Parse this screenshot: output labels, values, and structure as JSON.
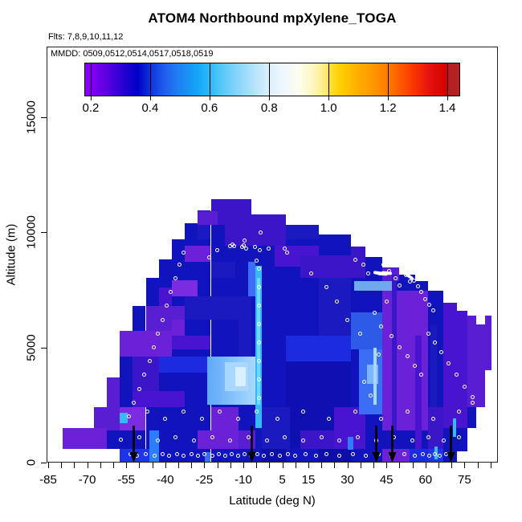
{
  "flights_note": "Flts: 7,8,9,10,11,12",
  "dates_note": "MMDD: 0509,0512,0514,0517,0518,0519",
  "chart_data": {
    "type": "heatmap",
    "title": "ATOM4 Northbound mpXylene_TOGA",
    "xlabel": "Latitude (deg N)",
    "ylabel": "Altitude (m)",
    "xlim": [
      -85,
      88
    ],
    "ylim": [
      0,
      18000
    ],
    "x_tick_labels": [
      -85,
      -70,
      -55,
      -40,
      -25,
      -10,
      5,
      15,
      30,
      45,
      60,
      75
    ],
    "x_minor_tick_range": [
      -85,
      85
    ],
    "x_minor_tick_step": 5,
    "y_ticks": [
      0,
      5000,
      10000,
      15000
    ],
    "grid": false,
    "colorbar": {
      "tick_labels": [
        "0.2",
        "0.4",
        "0.6",
        "0.8",
        "1.0",
        "1.2",
        "1.4"
      ],
      "tick_pcts": [
        1.7,
        17.5,
        33.3,
        49.2,
        65.0,
        80.8,
        96.6
      ],
      "stops": [
        [
          0,
          "#8B00FF"
        ],
        [
          2,
          "#7C00F2"
        ],
        [
          6,
          "#5A00E0"
        ],
        [
          10,
          "#2800D2"
        ],
        [
          14,
          "#0000C8"
        ],
        [
          17.5,
          "#0F35DC"
        ],
        [
          21.5,
          "#2360EE"
        ],
        [
          25.5,
          "#1E84F5"
        ],
        [
          29.5,
          "#12A2F8"
        ],
        [
          33.3,
          "#2CB9F8"
        ],
        [
          37.5,
          "#63CCF9"
        ],
        [
          41.5,
          "#8FD7FA"
        ],
        [
          45.5,
          "#B8E4FB"
        ],
        [
          49.2,
          "#DCEFFC"
        ],
        [
          53,
          "#EFF7FD"
        ],
        [
          57,
          "#FDFDEF"
        ],
        [
          61,
          "#FEF5BE"
        ],
        [
          64,
          "#FFEC7E"
        ],
        [
          65,
          "#FFE14B"
        ],
        [
          68,
          "#FFD000"
        ],
        [
          73,
          "#FFAD00"
        ],
        [
          77,
          "#FF9700"
        ],
        [
          81,
          "#FF7800"
        ],
        [
          85,
          "#FF5200"
        ],
        [
          88.7,
          "#F62D00"
        ],
        [
          92,
          "#E61212"
        ],
        [
          96.6,
          "#D40000"
        ],
        [
          96.9,
          "#B22222"
        ],
        [
          100,
          "#B22222"
        ]
      ]
    },
    "palette": {
      "P1": "#7B2BE2",
      "P2": "#6B21D8",
      "P3": "#5A1ED2",
      "P4": "#4814D0",
      "I1": "#3A16C8",
      "N0": "#0F10B2",
      "N1": "#0D0DA8",
      "N2": "#1A1AC0",
      "B1": "#1C2BE0",
      "B2": "#2133E8",
      "B3": "#2E5AE8",
      "R1": "#3C6EF5",
      "R2": "#2E7CFF",
      "S1": "#5FA8F8",
      "S2": "#6FA8EC",
      "L1": "#7EB6FF",
      "L2": "#A8D8FF",
      "L3": "#D8F0FF",
      "C1": "#38B8F8",
      "C2": "#70D8FF"
    },
    "base_color": "#1113BC",
    "cells_base": [
      [
        -79.5,
        -67.5,
        600,
        1500
      ],
      [
        -67.5,
        -62.5,
        600,
        2400
      ],
      [
        -62.5,
        -57.5,
        600,
        3700
      ],
      [
        -57.5,
        -52.5,
        0,
        5700
      ],
      [
        -52.5,
        -47.5,
        0,
        6800
      ],
      [
        -47.5,
        -42.5,
        0,
        8000
      ],
      [
        -42.5,
        -37.5,
        0,
        8800
      ],
      [
        -37.5,
        -32.5,
        0,
        9700
      ],
      [
        -32.5,
        -27.5,
        0,
        10400
      ],
      [
        -27.5,
        -22.5,
        0,
        10950
      ],
      [
        -22.5,
        -7,
        0,
        11430
      ],
      [
        -7,
        6.5,
        0,
        10770
      ],
      [
        6.5,
        19,
        0,
        10310
      ],
      [
        19,
        31.5,
        0,
        9900
      ],
      [
        31.5,
        37,
        0,
        9380
      ],
      [
        37,
        43.5,
        0,
        8920
      ],
      [
        43.5,
        50,
        0,
        8470
      ],
      [
        50,
        56,
        0,
        8150
      ],
      [
        56,
        61,
        0,
        7875
      ],
      [
        61,
        67,
        0,
        7460
      ],
      [
        67,
        72,
        0,
        6930
      ],
      [
        72,
        76,
        500,
        6600
      ],
      [
        76,
        79.5,
        1500,
        6375
      ],
      [
        79.5,
        83,
        2400,
        6000
      ],
      [
        83,
        85.5,
        4000,
        6375
      ]
    ],
    "cells_overlay": [
      [
        -79.5,
        -62.5,
        600,
        1500,
        "P2"
      ],
      [
        -67.5,
        -62.5,
        1500,
        2400,
        "P3"
      ],
      [
        -62.5,
        -57.5,
        1400,
        3700,
        "P3"
      ],
      [
        -57.5,
        -42.5,
        0,
        600,
        "B2"
      ],
      [
        -46,
        -42.5,
        0,
        1400,
        "R2"
      ],
      [
        -57.5,
        -47.5,
        1400,
        2400,
        "P1"
      ],
      [
        -57.5,
        -54.5,
        1700,
        2150,
        "C1"
      ],
      [
        -52.5,
        -32.5,
        2400,
        3100,
        "P4"
      ],
      [
        -52.5,
        -42.5,
        3100,
        4600,
        "I1"
      ],
      [
        -57.5,
        -37.5,
        4600,
        5700,
        "P2"
      ],
      [
        -47.5,
        -32.5,
        5700,
        6800,
        "P3"
      ],
      [
        -42.5,
        -37.5,
        6800,
        7600,
        "P4"
      ],
      [
        -37.5,
        -27.5,
        7200,
        7900,
        "P1"
      ],
      [
        -37.5,
        -32.5,
        5400,
        6200,
        "P2"
      ],
      [
        -42.5,
        -22.5,
        3900,
        4600,
        "B1"
      ],
      [
        -32.5,
        -22.5,
        8700,
        9400,
        "P2"
      ],
      [
        -27.5,
        -22.5,
        9700,
        10400,
        "N2"
      ],
      [
        -27.5,
        -20,
        10300,
        10900,
        "P3"
      ],
      [
        -22.5,
        -7,
        10900,
        11430,
        "I1"
      ],
      [
        -22.5,
        -13,
        8000,
        8700,
        "N2"
      ],
      [
        -17,
        -7,
        9400,
        10300,
        "I1"
      ],
      [
        -27.5,
        -7,
        600,
        1400,
        "P2"
      ],
      [
        -22.5,
        -12,
        1400,
        2400,
        "P2"
      ],
      [
        -32.5,
        -12,
        6200,
        7200,
        "N2"
      ],
      [
        -37.5,
        -22.5,
        4900,
        5500,
        "P4"
      ],
      [
        -24,
        -5.4,
        2500,
        4600,
        "S1",
        "L2"
      ],
      [
        -17,
        -8,
        3100,
        4350,
        "L2"
      ],
      [
        -13,
        -9,
        3300,
        4150,
        "L3"
      ],
      [
        -12,
        -7,
        4600,
        7200,
        "N2"
      ],
      [
        -12,
        -5.4,
        600,
        1400,
        "P3"
      ],
      [
        -5.4,
        -2.9,
        1500,
        8550,
        "C1"
      ],
      [
        -4.9,
        -3.4,
        2500,
        8000,
        "C2"
      ],
      [
        -8,
        -5.4,
        7200,
        8700,
        "R1"
      ],
      [
        -7,
        6.5,
        9400,
        10770,
        "I1"
      ],
      [
        2,
        19,
        8500,
        9400,
        "P4"
      ],
      [
        6.5,
        19,
        9700,
        10310,
        "N2"
      ],
      [
        -2.9,
        6.5,
        0,
        600,
        "N1"
      ],
      [
        6.5,
        31.5,
        600,
        4400,
        "N0"
      ],
      [
        6.5,
        31.5,
        4400,
        5500,
        "B1"
      ],
      [
        19,
        31.5,
        5500,
        8000,
        "N2"
      ],
      [
        12,
        31.5,
        8000,
        9000,
        "I1"
      ],
      [
        31.5,
        37,
        8000,
        9380,
        "I1"
      ],
      [
        25,
        37,
        600,
        2400,
        "P4"
      ],
      [
        32.5,
        49,
        7460,
        7875,
        "S2"
      ],
      [
        31.5,
        43.5,
        4900,
        6500,
        "B3"
      ],
      [
        34.5,
        43.5,
        2100,
        4900,
        "R1"
      ],
      [
        37.5,
        42,
        3400,
        4250,
        "L1"
      ],
      [
        40,
        41.2,
        2500,
        5000,
        "L2"
      ],
      [
        43.5,
        61,
        1400,
        7460,
        "P2"
      ],
      [
        43.5,
        50,
        7875,
        8470,
        "P3"
      ],
      [
        47,
        49,
        1400,
        8150,
        "I1"
      ],
      [
        56,
        58.5,
        600,
        5500,
        "P4"
      ],
      [
        62,
        64.5,
        2400,
        6000,
        "N2"
      ],
      [
        61,
        67,
        600,
        2400,
        "I1"
      ],
      [
        67,
        76,
        1500,
        6600,
        "P4"
      ],
      [
        67,
        72,
        6600,
        6930,
        "P4"
      ],
      [
        70.5,
        71.8,
        1100,
        1900,
        "C1"
      ],
      [
        76,
        79.5,
        2400,
        6375,
        "P3"
      ],
      [
        79.5,
        83,
        2400,
        6000,
        "P3"
      ],
      [
        83,
        85.5,
        4000,
        6375,
        "P3"
      ],
      [
        43.5,
        54,
        0,
        600,
        "P2"
      ],
      [
        54,
        61,
        0,
        600,
        "B1"
      ],
      [
        61,
        67,
        0,
        600,
        "B2"
      ],
      [
        19,
        31.5,
        0,
        600,
        "N1"
      ],
      [
        -2.9,
        8,
        600,
        2400,
        "N2"
      ],
      [
        12,
        25,
        600,
        1400,
        "I1"
      ],
      [
        -20,
        -7,
        10300,
        10900,
        "I1"
      ],
      [
        30,
        32.3,
        550,
        1100,
        "R2"
      ],
      [
        63.5,
        64.8,
        150,
        700,
        "C1"
      ],
      [
        -24.8,
        -22.7,
        0,
        450,
        "R1"
      ]
    ],
    "markers": [
      [
        -53.5,
        350
      ],
      [
        -51,
        300
      ],
      [
        -47.5,
        350
      ],
      [
        -44,
        300
      ],
      [
        -41,
        350
      ],
      [
        -38.5,
        300
      ],
      [
        -35.5,
        350
      ],
      [
        -33,
        300
      ],
      [
        -30,
        350
      ],
      [
        -27.5,
        300
      ],
      [
        -25,
        350
      ],
      [
        -22,
        300
      ],
      [
        -19.5,
        350
      ],
      [
        -17,
        300
      ],
      [
        -14.5,
        350
      ],
      [
        -12,
        300
      ],
      [
        -9.5,
        350
      ],
      [
        -7,
        300
      ],
      [
        -4.5,
        350
      ],
      [
        -2,
        300
      ],
      [
        1,
        350
      ],
      [
        4,
        300
      ],
      [
        7,
        350
      ],
      [
        10,
        300
      ],
      [
        14,
        350
      ],
      [
        18,
        300
      ],
      [
        22,
        350
      ],
      [
        27,
        300
      ],
      [
        32,
        350
      ],
      [
        37,
        300
      ],
      [
        42,
        350
      ],
      [
        47,
        300
      ],
      [
        52,
        350
      ],
      [
        56,
        300
      ],
      [
        59,
        350
      ],
      [
        61.5,
        300
      ],
      [
        63.5,
        350
      ],
      [
        65.5,
        300
      ],
      [
        68,
        350
      ],
      [
        -57,
        1000
      ],
      [
        -50,
        1100
      ],
      [
        -43,
        950
      ],
      [
        -36,
        1100
      ],
      [
        -29,
        950
      ],
      [
        -22,
        1100
      ],
      [
        -15,
        950
      ],
      [
        -8,
        1100
      ],
      [
        -1,
        950
      ],
      [
        6,
        1100
      ],
      [
        13,
        950
      ],
      [
        20,
        1100
      ],
      [
        27,
        950
      ],
      [
        34,
        1100
      ],
      [
        41,
        950
      ],
      [
        48,
        1100
      ],
      [
        55,
        950
      ],
      [
        61,
        1100
      ],
      [
        67,
        950
      ],
      [
        73,
        1100
      ],
      [
        -54,
        2000
      ],
      [
        -47,
        2200
      ],
      [
        -40,
        1900
      ],
      [
        -33,
        2200
      ],
      [
        -26,
        1900
      ],
      [
        -19,
        2200
      ],
      [
        -12,
        1900
      ],
      [
        -5,
        2200
      ],
      [
        3,
        1900
      ],
      [
        13,
        2200
      ],
      [
        23,
        1900
      ],
      [
        33,
        2200
      ],
      [
        43,
        1900
      ],
      [
        53,
        2200
      ],
      [
        63,
        1900
      ],
      [
        73,
        2200
      ],
      [
        78,
        2600
      ],
      [
        -52,
        2600
      ],
      [
        -50,
        3200
      ],
      [
        -48,
        3800
      ],
      [
        -46,
        4400
      ],
      [
        -44.5,
        5000
      ],
      [
        -43,
        5600
      ],
      [
        -41,
        6200
      ],
      [
        -39.5,
        6800
      ],
      [
        -38,
        7400
      ],
      [
        -36,
        8000
      ],
      [
        -34.5,
        8600
      ],
      [
        -33,
        9100
      ],
      [
        -4,
        2800
      ],
      [
        -4,
        3600
      ],
      [
        -4,
        4400
      ],
      [
        -4,
        5200
      ],
      [
        -4,
        6000
      ],
      [
        -4,
        6800
      ],
      [
        -4,
        7600
      ],
      [
        -4,
        8400
      ],
      [
        -3.7,
        9200
      ],
      [
        -3.4,
        10000
      ],
      [
        -15,
        9400
      ],
      [
        -14.2,
        9450
      ],
      [
        -13.5,
        9380
      ],
      [
        -10.5,
        9350
      ],
      [
        -9.7,
        9420
      ],
      [
        -9,
        9300
      ],
      [
        -5.5,
        9340
      ],
      [
        -0.2,
        9280
      ],
      [
        6,
        9270
      ],
      [
        6.8,
        9100
      ],
      [
        -4.8,
        8750
      ],
      [
        -9.4,
        9620
      ],
      [
        -20,
        9200
      ],
      [
        -23,
        8900
      ],
      [
        33,
        8800
      ],
      [
        36,
        8600
      ],
      [
        38,
        8200
      ],
      [
        44,
        8600
      ],
      [
        46,
        8300
      ],
      [
        48.5,
        8000
      ],
      [
        50,
        7700
      ],
      [
        52.5,
        8150
      ],
      [
        54,
        7850
      ],
      [
        45,
        7000
      ],
      [
        40.5,
        6500
      ],
      [
        43,
        5900
      ],
      [
        47,
        5500
      ],
      [
        50,
        5000
      ],
      [
        53,
        4600
      ],
      [
        56,
        4200
      ],
      [
        58.5,
        3800
      ],
      [
        61,
        5600
      ],
      [
        63.5,
        5200
      ],
      [
        66,
        4800
      ],
      [
        69,
        4300
      ],
      [
        72,
        3800
      ],
      [
        75,
        3300
      ],
      [
        78,
        2850
      ],
      [
        36.5,
        3500
      ],
      [
        39,
        2900
      ],
      [
        42,
        4700
      ],
      [
        35,
        5600
      ],
      [
        30,
        6200
      ],
      [
        26,
        7000
      ],
      [
        22,
        7600
      ],
      [
        16,
        8200
      ],
      [
        55.5,
        7900
      ],
      [
        57,
        7650
      ],
      [
        58.5,
        7400
      ],
      [
        60,
        7100
      ],
      [
        61.5,
        6850
      ],
      [
        63,
        6600
      ]
    ],
    "dashes": [
      [
        48.8,
        8870,
        22
      ],
      [
        50.3,
        8600,
        28
      ],
      [
        52,
        8330,
        33
      ],
      [
        53.6,
        8080,
        38
      ],
      [
        42,
        8230,
        8
      ],
      [
        43.7,
        8180,
        3
      ],
      [
        45,
        8210,
        5
      ]
    ],
    "arrow_lats": [
      -52,
      -6.9,
      41,
      47.1,
      69.9
    ]
  }
}
